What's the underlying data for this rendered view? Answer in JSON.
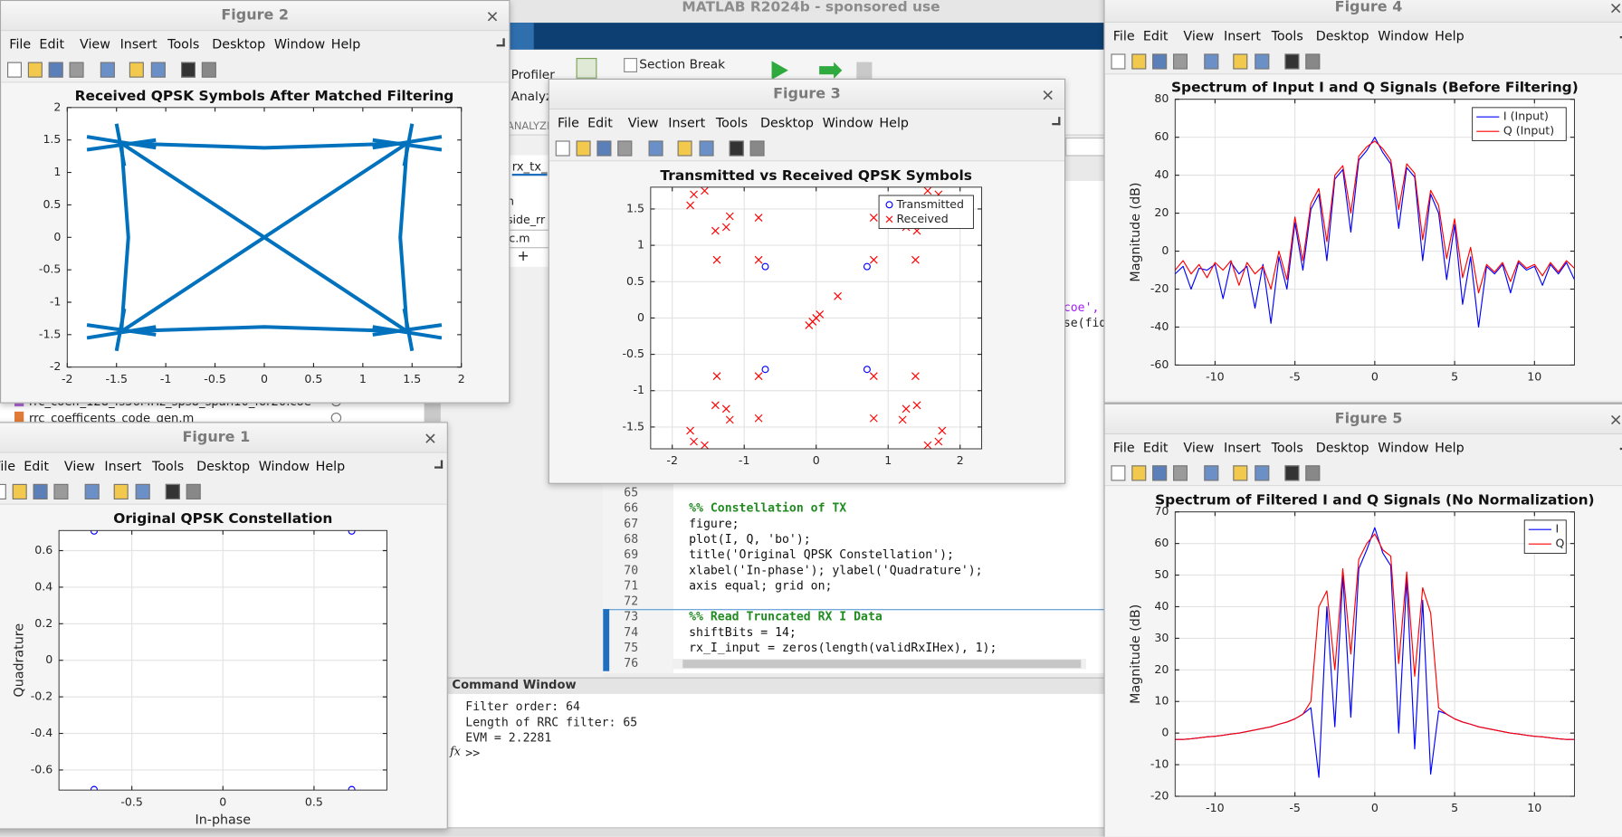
{
  "app": {
    "title": "MATLAB R2024b - sponsored use",
    "toolstrip": {
      "profiler": "Profiler",
      "analyze": "Analyze",
      "section_break": "Section Break",
      "tab": "ANALYZE"
    }
  },
  "folder": {
    "tab": "rx_tx_",
    "items": [
      "n",
      "side_rr",
      "c.m"
    ],
    "add": "+",
    "files": [
      "rrc_coeff_128_fs56MHz_sps8_span10_for20.coe",
      "rrc_coefficents_code_gen.m"
    ]
  },
  "editor": {
    "fragments": [
      "coe',",
      "se(fid"
    ],
    "lines": [
      {
        "number": 65
      },
      {
        "number": 66,
        "code": "%% Constellation of TX"
      },
      {
        "number": 67,
        "code": "figure;"
      },
      {
        "number": 68,
        "code": "plot(I, Q, 'bo');"
      },
      {
        "number": 69,
        "code": "title('Original QPSK Constellation');"
      },
      {
        "number": 70,
        "code": "xlabel('In-phase'); ylabel('Quadrature');"
      },
      {
        "number": 71,
        "code": "axis equal; grid on;"
      },
      {
        "number": 72
      },
      {
        "number": 73,
        "code": "%% Read Truncated RX I Data"
      },
      {
        "number": 74,
        "code": "shiftBits = 14;"
      },
      {
        "number": 75,
        "code": "rx_I_input = zeros(length(validRxIHex), 1);"
      },
      {
        "number": 76
      }
    ]
  },
  "command_window": {
    "title": "Command Window",
    "lines": [
      "Filter order: 64",
      "Length of RRC filter: 65",
      "EVM = 2.2281"
    ],
    "function_icon": "fx",
    "prompt": ">>"
  },
  "figure_menu": [
    "File",
    "Edit",
    "View",
    "Insert",
    "Tools",
    "Desktop",
    "Window",
    "Help"
  ],
  "figures": [
    {
      "window_title": "Figure 2",
      "chart_data": {
        "type": "line",
        "title": "Received QPSK Symbols After Matched Filtering",
        "xlim": [
          -2,
          2
        ],
        "ylim": [
          -2,
          2
        ],
        "xticks": [
          -2,
          -1.5,
          -1,
          -0.5,
          0,
          0.5,
          1,
          1.5,
          2
        ],
        "yticks": [
          -2,
          -1.5,
          -1,
          -0.5,
          0,
          0.5,
          1,
          1.5,
          2
        ],
        "grid": false,
        "series": [
          {
            "color": "#0072bd",
            "x": [
              -1.45,
              0,
              1.45,
              1.38,
              1.45,
              0,
              -1.45,
              -1.38,
              -1.45,
              null,
              -1.45,
              1.45,
              null,
              1.45,
              -1.45,
              null,
              -1.8,
              -1.1,
              null,
              -1.8,
              -1.1,
              null,
              -1.5,
              -1.42,
              null,
              1.8,
              1.1,
              null,
              1.8,
              1.1,
              null,
              1.5,
              1.42,
              null,
              1.8,
              1.1,
              null,
              1.8,
              1.1,
              null,
              1.5,
              1.42,
              null,
              -1.8,
              -1.1,
              null,
              -1.8,
              -1.1,
              null,
              -1.5,
              -1.42
            ],
            "values": [
              1.45,
              1.38,
              1.45,
              0,
              -1.45,
              -1.38,
              -1.45,
              0,
              1.45,
              null,
              1.45,
              -1.45,
              null,
              1.45,
              -1.45,
              null,
              1.55,
              1.38,
              null,
              1.35,
              1.5,
              null,
              1.75,
              1.1,
              null,
              1.55,
              1.38,
              null,
              1.35,
              1.5,
              null,
              1.75,
              1.1,
              null,
              -1.55,
              -1.38,
              null,
              -1.35,
              -1.5,
              null,
              -1.75,
              -1.1,
              null,
              -1.55,
              -1.38,
              null,
              -1.35,
              -1.5,
              null,
              -1.75,
              -1.1
            ]
          }
        ]
      }
    },
    {
      "window_title": "Figure 3",
      "chart_data": {
        "type": "scatter",
        "title": "Transmitted vs Received QPSK Symbols",
        "xlim": [
          -2.3,
          2.3
        ],
        "ylim": [
          -1.8,
          1.8
        ],
        "xticks": [
          -2,
          -1,
          0,
          1,
          2
        ],
        "yticks": [
          -1.5,
          -1,
          -0.5,
          0,
          0.5,
          1,
          1.5
        ],
        "grid": true,
        "legend": "northeast",
        "series": [
          {
            "name": "Transmitted",
            "color": "#0000ff",
            "marker": "o",
            "x": [
              -0.707,
              0.707,
              -0.707,
              0.707
            ],
            "values": [
              0.707,
              0.707,
              -0.707,
              -0.707
            ]
          },
          {
            "name": "Received",
            "color": "#ff0000",
            "marker": "x",
            "x": [
              0.8,
              0.8,
              1.38,
              1.25,
              1.4,
              1.2,
              1.7,
              1.75,
              1.55,
              -0.8,
              -0.8,
              -1.38,
              -1.25,
              -1.4,
              -1.2,
              -1.7,
              -1.75,
              -1.55,
              -0.8,
              -0.8,
              -1.38,
              -1.25,
              -1.4,
              -1.2,
              -1.7,
              -1.75,
              -1.55,
              0.8,
              0.8,
              1.38,
              1.25,
              1.4,
              1.2,
              1.7,
              1.75,
              1.55,
              0.3,
              0.05,
              0,
              -0.05,
              -0.1
            ],
            "values": [
              0.8,
              1.38,
              0.8,
              1.25,
              1.2,
              1.4,
              1.7,
              1.55,
              1.75,
              0.8,
              1.38,
              0.8,
              1.25,
              1.2,
              1.4,
              1.7,
              1.55,
              1.75,
              -0.8,
              -1.38,
              -0.8,
              -1.25,
              -1.2,
              -1.4,
              -1.7,
              -1.55,
              -1.75,
              -0.8,
              -1.38,
              -0.8,
              -1.25,
              -1.2,
              -1.4,
              -1.7,
              -1.55,
              -1.75,
              0.3,
              0.05,
              0,
              -0.05,
              -0.1
            ]
          }
        ]
      }
    },
    {
      "window_title": "Figure 1",
      "chart_data": {
        "type": "scatter",
        "title": "Original QPSK Constellation",
        "xlabel": "In-phase",
        "ylabel": "Quadrature",
        "xlim": [
          -0.9,
          0.9
        ],
        "ylim": [
          -0.71,
          0.71
        ],
        "xticks": [
          -0.5,
          0,
          0.5
        ],
        "yticks": [
          -0.6,
          -0.4,
          -0.2,
          0,
          0.2,
          0.4,
          0.6
        ],
        "grid": true,
        "series": [
          {
            "color": "#0000ff",
            "marker": "o",
            "x": [
              -0.7071,
              0.7071,
              -0.7071,
              0.7071
            ],
            "values": [
              0.7071,
              0.7071,
              -0.7071,
              -0.7071
            ]
          }
        ]
      }
    },
    {
      "window_title": "Figure 4",
      "chart_data": {
        "type": "line",
        "title": "Spectrum of Input I and Q Signals (Before Filtering)",
        "ylabel": "Magnitude (dB)",
        "xlim": [
          -12.5,
          12.5
        ],
        "ylim": [
          -60,
          80
        ],
        "xticks": [
          -10,
          -5,
          0,
          5,
          10
        ],
        "yticks": [
          -60,
          -40,
          -20,
          0,
          20,
          40,
          60,
          80
        ],
        "grid": true,
        "legend": "northeast",
        "x": [
          -12.5,
          -12,
          -11.5,
          -11,
          -10.5,
          -10,
          -9.5,
          -9,
          -8.5,
          -8,
          -7.5,
          -7,
          -6.5,
          -6,
          -5.5,
          -5,
          -4.5,
          -4,
          -3.5,
          -3,
          -2.5,
          -2,
          -1.5,
          -1,
          -0.5,
          0,
          0.5,
          1,
          1.5,
          2,
          2.5,
          3,
          3.5,
          4,
          4.5,
          5,
          5.5,
          6,
          6.5,
          7,
          7.5,
          8,
          8.5,
          9,
          9.5,
          10,
          10.5,
          11,
          11.5,
          12,
          12.5
        ],
        "series": [
          {
            "name": "I (Input)",
            "color": "#0000ff",
            "values": [
              -12,
              -8,
              -20,
              -9,
              -10,
              -7,
              -25,
              -6,
              -12,
              -8,
              -30,
              -7,
              -38,
              -3,
              -20,
              15,
              -10,
              22,
              30,
              -5,
              38,
              43,
              10,
              48,
              53,
              60,
              52,
              46,
              12,
              44,
              39,
              -5,
              30,
              20,
              -15,
              14,
              -28,
              -3,
              -40,
              -8,
              -12,
              -7,
              -22,
              -6,
              -10,
              -8,
              -18,
              -7,
              -12,
              -6,
              -15
            ]
          },
          {
            "name": "Q (Input)",
            "color": "#ff0000",
            "values": [
              -10,
              -5,
              -12,
              -7,
              -14,
              -6,
              -10,
              -5,
              -18,
              -6,
              -12,
              -8,
              -20,
              0,
              -15,
              18,
              -5,
              25,
              33,
              5,
              40,
              45,
              20,
              50,
              55,
              58,
              54,
              48,
              22,
              46,
              41,
              6,
              32,
              24,
              -4,
              17,
              -14,
              2,
              -22,
              -7,
              -11,
              -6,
              -16,
              -5,
              -9,
              -7,
              -13,
              -6,
              -11,
              -5,
              -9
            ]
          }
        ]
      }
    },
    {
      "window_title": "Figure 5",
      "chart_data": {
        "type": "line",
        "title": "Spectrum of Filtered I and Q Signals (No Normalization)",
        "ylabel": "Magnitude (dB)",
        "xlim": [
          -12.5,
          12.5
        ],
        "ylim": [
          -20,
          70
        ],
        "xticks": [
          -10,
          -5,
          0,
          5,
          10
        ],
        "yticks": [
          -20,
          -10,
          0,
          10,
          20,
          30,
          40,
          50,
          60,
          70
        ],
        "grid": true,
        "legend": "northeast",
        "x": [
          -12.5,
          -12,
          -11.5,
          -11,
          -10.5,
          -10,
          -9.5,
          -9,
          -8.5,
          -8,
          -7.5,
          -7,
          -6.5,
          -6,
          -5.5,
          -5,
          -4.5,
          -4,
          -3.5,
          -3,
          -2.5,
          -2,
          -1.5,
          -1,
          -0.5,
          0,
          0.5,
          1,
          1.5,
          2,
          2.5,
          3,
          3.5,
          4,
          4.5,
          5,
          5.5,
          6,
          6.5,
          7,
          7.5,
          8,
          8.5,
          9,
          9.5,
          10,
          10.5,
          11,
          11.5,
          12,
          12.5
        ],
        "series": [
          {
            "name": "I",
            "color": "#0000ff",
            "values": [
              -2,
              -2,
              -1.8,
              -1.5,
              -1.2,
              -1,
              -0.7,
              -0.3,
              0,
              0.5,
              1,
              1.5,
              2,
              2.8,
              3.5,
              4.5,
              6,
              8,
              -14,
              40,
              2,
              50,
              5,
              52,
              58,
              65,
              57,
              53,
              0,
              49,
              -5,
              42,
              -13,
              7,
              6,
              4.5,
              3.5,
              2.8,
              2,
              1.5,
              1,
              0.5,
              0,
              -0.3,
              -0.7,
              -1,
              -1.2,
              -1.5,
              -1.8,
              -2,
              -2
            ]
          },
          {
            "name": "Q",
            "color": "#ff0000",
            "values": [
              -2,
              -2,
              -1.8,
              -1.5,
              -1.2,
              -1,
              -0.7,
              -0.3,
              0,
              0.5,
              1,
              1.5,
              2,
              2.8,
              3.5,
              4.5,
              6,
              10,
              40,
              45,
              20,
              52,
              25,
              55,
              60,
              63,
              58,
              56,
              22,
              51,
              18,
              46,
              38,
              8,
              6,
              4.5,
              3.5,
              2.8,
              2,
              1.5,
              1,
              0.5,
              0,
              -0.3,
              -0.7,
              -1,
              -1.2,
              -1.5,
              -1.8,
              -2,
              -2
            ]
          }
        ]
      }
    }
  ]
}
